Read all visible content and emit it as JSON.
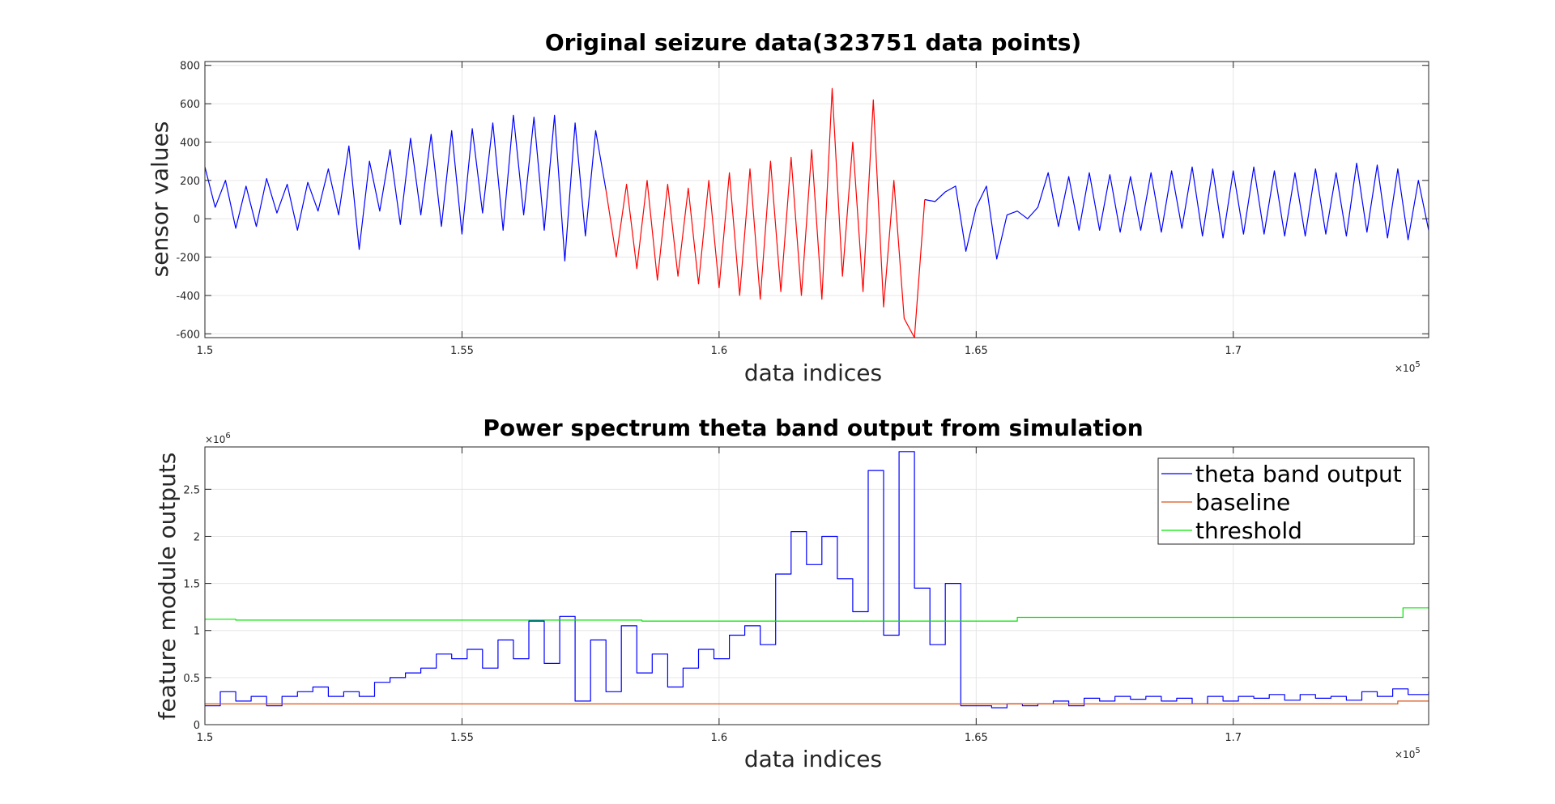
{
  "chart_data": [
    {
      "type": "line",
      "title": "Original seizure data(323751 data points)",
      "xlabel": "data indices",
      "ylabel": "sensor values",
      "x_exponent_label": "×10",
      "x_exponent": "5",
      "xlim": [
        150000,
        173800
      ],
      "ylim": [
        -620,
        820
      ],
      "xticks": [
        150000,
        155000,
        160000,
        165000,
        170000
      ],
      "xtick_labels": [
        "1.5",
        "1.55",
        "1.6",
        "1.65",
        "1.7"
      ],
      "yticks": [
        -600,
        -400,
        -200,
        0,
        200,
        400,
        600,
        800
      ],
      "ytick_labels": [
        "-600",
        "-400",
        "-200",
        "0",
        "200",
        "400",
        "600",
        "800"
      ],
      "grid": true,
      "legend": "none",
      "series": [
        {
          "color": "#0000ff",
          "segment": "pre-seizure",
          "x": [
            150000,
            150200,
            150400,
            150600,
            150800,
            151000,
            151200,
            151400,
            151600,
            151800,
            152000,
            152200,
            152400,
            152600,
            152800,
            153000,
            153200,
            153400,
            153600,
            153800,
            154000,
            154200,
            154400,
            154600,
            154800,
            155000,
            155200,
            155400,
            155600,
            155800,
            156000,
            156200,
            156400,
            156600,
            156800,
            157000,
            157200,
            157400,
            157600,
            157800
          ],
          "y": [
            270,
            60,
            200,
            -50,
            170,
            -40,
            210,
            30,
            180,
            -60,
            190,
            40,
            260,
            20,
            380,
            -160,
            300,
            40,
            360,
            -30,
            420,
            20,
            440,
            -40,
            460,
            -80,
            470,
            30,
            500,
            -60,
            540,
            20,
            530,
            -60,
            540,
            -220,
            500,
            -90,
            460,
            150
          ]
        },
        {
          "color": "#ff0000",
          "segment": "seizure",
          "x": [
            157800,
            158000,
            158200,
            158400,
            158600,
            158800,
            159000,
            159200,
            159400,
            159600,
            159800,
            160000,
            160200,
            160400,
            160600,
            160800,
            161000,
            161200,
            161400,
            161600,
            161800,
            162000,
            162200,
            162400,
            162600,
            162800,
            163000,
            163200,
            163400,
            163600,
            163800,
            164000
          ],
          "y": [
            150,
            -200,
            180,
            -260,
            200,
            -320,
            180,
            -300,
            160,
            -340,
            200,
            -360,
            240,
            -400,
            260,
            -420,
            300,
            -380,
            320,
            -400,
            360,
            -420,
            680,
            -300,
            400,
            -380,
            620,
            -460,
            200,
            -520,
            -620,
            100
          ]
        },
        {
          "color": "#0000ff",
          "segment": "post-seizure",
          "x": [
            164000,
            164200,
            164400,
            164600,
            164800,
            165000,
            165200,
            165400,
            165600,
            165800,
            166000,
            166200,
            166400,
            166600,
            166800,
            167000,
            167200,
            167400,
            167600,
            167800,
            168000,
            168200,
            168400,
            168600,
            168800,
            169000,
            169200,
            169400,
            169600,
            169800,
            170000,
            170200,
            170400,
            170600,
            170800,
            171000,
            171200,
            171400,
            171600,
            171800,
            172000,
            172200,
            172400,
            172600,
            172800,
            173000,
            173200,
            173400,
            173600,
            173800
          ],
          "y": [
            100,
            90,
            140,
            170,
            -170,
            60,
            170,
            -210,
            20,
            40,
            0,
            60,
            240,
            -40,
            220,
            -60,
            240,
            -60,
            230,
            -70,
            220,
            -60,
            240,
            -70,
            250,
            -50,
            270,
            -90,
            260,
            -100,
            250,
            -80,
            270,
            -80,
            250,
            -90,
            240,
            -90,
            260,
            -80,
            240,
            -90,
            290,
            -70,
            280,
            -100,
            260,
            -110,
            200,
            -60
          ]
        }
      ]
    },
    {
      "type": "line",
      "title": "Power spectrum theta band output from simulation",
      "xlabel": "data indices",
      "ylabel": "feature module outputs",
      "x_exponent_label": "×10",
      "x_exponent": "5",
      "y_exponent_label": "×10",
      "y_exponent": "6",
      "xlim": [
        150000,
        173800
      ],
      "ylim": [
        0,
        2.95
      ],
      "xticks": [
        150000,
        155000,
        160000,
        165000,
        170000
      ],
      "xtick_labels": [
        "1.5",
        "1.55",
        "1.6",
        "1.65",
        "1.7"
      ],
      "yticks": [
        0,
        0.5,
        1,
        1.5,
        2,
        2.5
      ],
      "ytick_labels": [
        "0",
        "0.5",
        "1",
        "1.5",
        "2",
        "2.5"
      ],
      "grid": true,
      "legend": "top-right",
      "series": [
        {
          "name": "theta band output",
          "color": "#0000ff",
          "step": true,
          "x": [
            150000,
            150300,
            150600,
            150900,
            151200,
            151500,
            151800,
            152100,
            152400,
            152700,
            153000,
            153300,
            153600,
            153900,
            154200,
            154500,
            154800,
            155100,
            155400,
            155700,
            156000,
            156300,
            156600,
            156900,
            157200,
            157500,
            157800,
            158100,
            158400,
            158700,
            159000,
            159300,
            159600,
            159900,
            160200,
            160500,
            160800,
            161100,
            161400,
            161700,
            162000,
            162300,
            162600,
            162900,
            163200,
            163500,
            163800,
            164100,
            164400,
            164700,
            165000,
            165300,
            165600,
            165900,
            166200,
            166500,
            166800,
            167100,
            167400,
            167700,
            168000,
            168300,
            168600,
            168900,
            169200,
            169500,
            169800,
            170100,
            170400,
            170700,
            171000,
            171300,
            171600,
            171900,
            172200,
            172500,
            172800,
            173100,
            173400,
            173800
          ],
          "y": [
            0.2,
            0.35,
            0.25,
            0.3,
            0.2,
            0.3,
            0.35,
            0.4,
            0.3,
            0.35,
            0.3,
            0.45,
            0.5,
            0.55,
            0.6,
            0.75,
            0.7,
            0.8,
            0.6,
            0.9,
            0.7,
            1.1,
            0.65,
            1.15,
            0.25,
            0.9,
            0.35,
            1.05,
            0.55,
            0.75,
            0.4,
            0.6,
            0.8,
            0.7,
            0.95,
            1.05,
            0.85,
            1.6,
            2.05,
            1.7,
            2.0,
            1.55,
            1.2,
            2.7,
            0.95,
            2.9,
            1.45,
            0.85,
            1.5,
            0.2,
            0.2,
            0.18,
            0.22,
            0.2,
            0.22,
            0.25,
            0.2,
            0.28,
            0.25,
            0.3,
            0.27,
            0.3,
            0.25,
            0.28,
            0.22,
            0.3,
            0.25,
            0.3,
            0.28,
            0.32,
            0.26,
            0.32,
            0.28,
            0.3,
            0.26,
            0.35,
            0.3,
            0.38,
            0.32,
            0.35
          ]
        },
        {
          "name": "baseline",
          "color": "#d95319",
          "step": true,
          "x": [
            150000,
            158000,
            166000,
            173200,
            173800
          ],
          "y": [
            0.22,
            0.22,
            0.22,
            0.25,
            0.25
          ]
        },
        {
          "name": "threshold",
          "color": "#00e600",
          "step": true,
          "x": [
            150000,
            150600,
            158300,
            158500,
            165800,
            173300,
            173800
          ],
          "y": [
            1.12,
            1.11,
            1.11,
            1.1,
            1.14,
            1.24,
            1.24
          ]
        }
      ]
    }
  ]
}
